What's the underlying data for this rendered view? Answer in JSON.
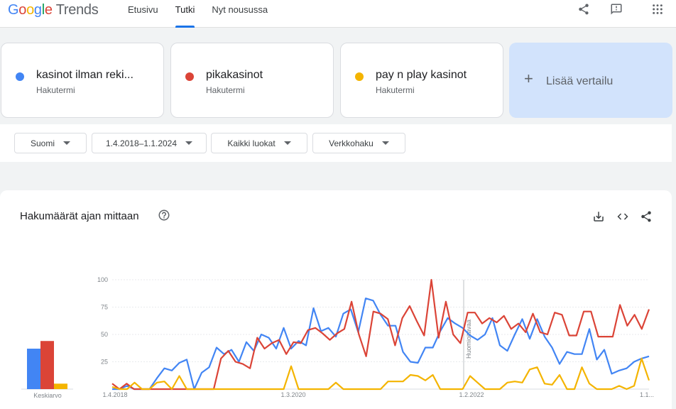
{
  "header": {
    "logo_google": "Google",
    "logo_trends": "Trends",
    "nav": [
      {
        "label": "Etusivu",
        "active": false
      },
      {
        "label": "Tutki",
        "active": true
      },
      {
        "label": "Nyt nousussa",
        "active": false
      }
    ],
    "icons": [
      "share-icon",
      "feedback-icon",
      "apps-grid-icon"
    ]
  },
  "terms": [
    {
      "name": "kasinot ilman reki...",
      "sub": "Hakutermi",
      "color": "#4285f4"
    },
    {
      "name": "pikakasinot",
      "sub": "Hakutermi",
      "color": "#db4437"
    },
    {
      "name": "pay n play kasinot",
      "sub": "Hakutermi",
      "color": "#f4b400"
    }
  ],
  "add_compare": {
    "label": "Lisää vertailu"
  },
  "filters": {
    "region": "Suomi",
    "date_range": "1.4.2018–1.1.2024",
    "category": "Kaikki luokat",
    "search_type": "Verkkohaku"
  },
  "chart_card": {
    "title": "Hakumäärät ajan mittaan",
    "icons": [
      "help-icon",
      "download-icon",
      "embed-icon",
      "share-icon"
    ]
  },
  "chart_data": {
    "type": "line",
    "ylim": [
      0,
      100
    ],
    "yticks": [
      "25",
      "50",
      "75",
      "100"
    ],
    "xticks": [
      "1.4.2018",
      "1.3.2020",
      "1.2.2022",
      "1.1..."
    ],
    "note_label": "Huomioitavaa",
    "average_label": "Keskiarvo",
    "averages": [
      37,
      44,
      5
    ],
    "series": [
      {
        "color": "#4285f4",
        "values": [
          0,
          0,
          3,
          0,
          0,
          0,
          10,
          19,
          17,
          24,
          27,
          0,
          15,
          20,
          38,
          32,
          36,
          25,
          43,
          35,
          50,
          47,
          37,
          56,
          37,
          44,
          40,
          74,
          53,
          56,
          48,
          69,
          73,
          52,
          83,
          81,
          68,
          58,
          58,
          34,
          25,
          24,
          38,
          38,
          53,
          65,
          60,
          56,
          49,
          45,
          50,
          65,
          40,
          35,
          50,
          64,
          46,
          64,
          48,
          38,
          23,
          34,
          32,
          32,
          55,
          27,
          36,
          14,
          17,
          19,
          25,
          28,
          30
        ]
      },
      {
        "color": "#db4437",
        "values": [
          5,
          0,
          5,
          0,
          0,
          0,
          0,
          0,
          0,
          0,
          0,
          0,
          0,
          0,
          0,
          28,
          35,
          25,
          23,
          19,
          47,
          37,
          42,
          45,
          32,
          43,
          42,
          54,
          56,
          51,
          45,
          51,
          55,
          80,
          50,
          30,
          71,
          69,
          64,
          40,
          65,
          76,
          62,
          49,
          100,
          47,
          80,
          50,
          42,
          70,
          70,
          60,
          65,
          61,
          67,
          55,
          60,
          52,
          69,
          52,
          50,
          70,
          68,
          49,
          49,
          71,
          71,
          48,
          48,
          48,
          77,
          58,
          68,
          55,
          73
        ]
      },
      {
        "color": "#f4b400",
        "values": [
          2,
          0,
          0,
          6,
          0,
          0,
          6,
          7,
          0,
          12,
          0,
          0,
          0,
          0,
          0,
          0,
          0,
          0,
          0,
          0,
          0,
          0,
          0,
          0,
          21,
          0,
          0,
          0,
          0,
          0,
          6,
          0,
          0,
          0,
          0,
          0,
          0,
          7,
          7,
          7,
          13,
          12,
          8,
          13,
          0,
          0,
          0,
          0,
          12,
          6,
          0,
          0,
          0,
          6,
          7,
          6,
          18,
          20,
          5,
          4,
          13,
          0,
          0,
          20,
          5,
          0,
          0,
          0,
          3,
          0,
          3,
          28,
          8
        ]
      }
    ]
  }
}
